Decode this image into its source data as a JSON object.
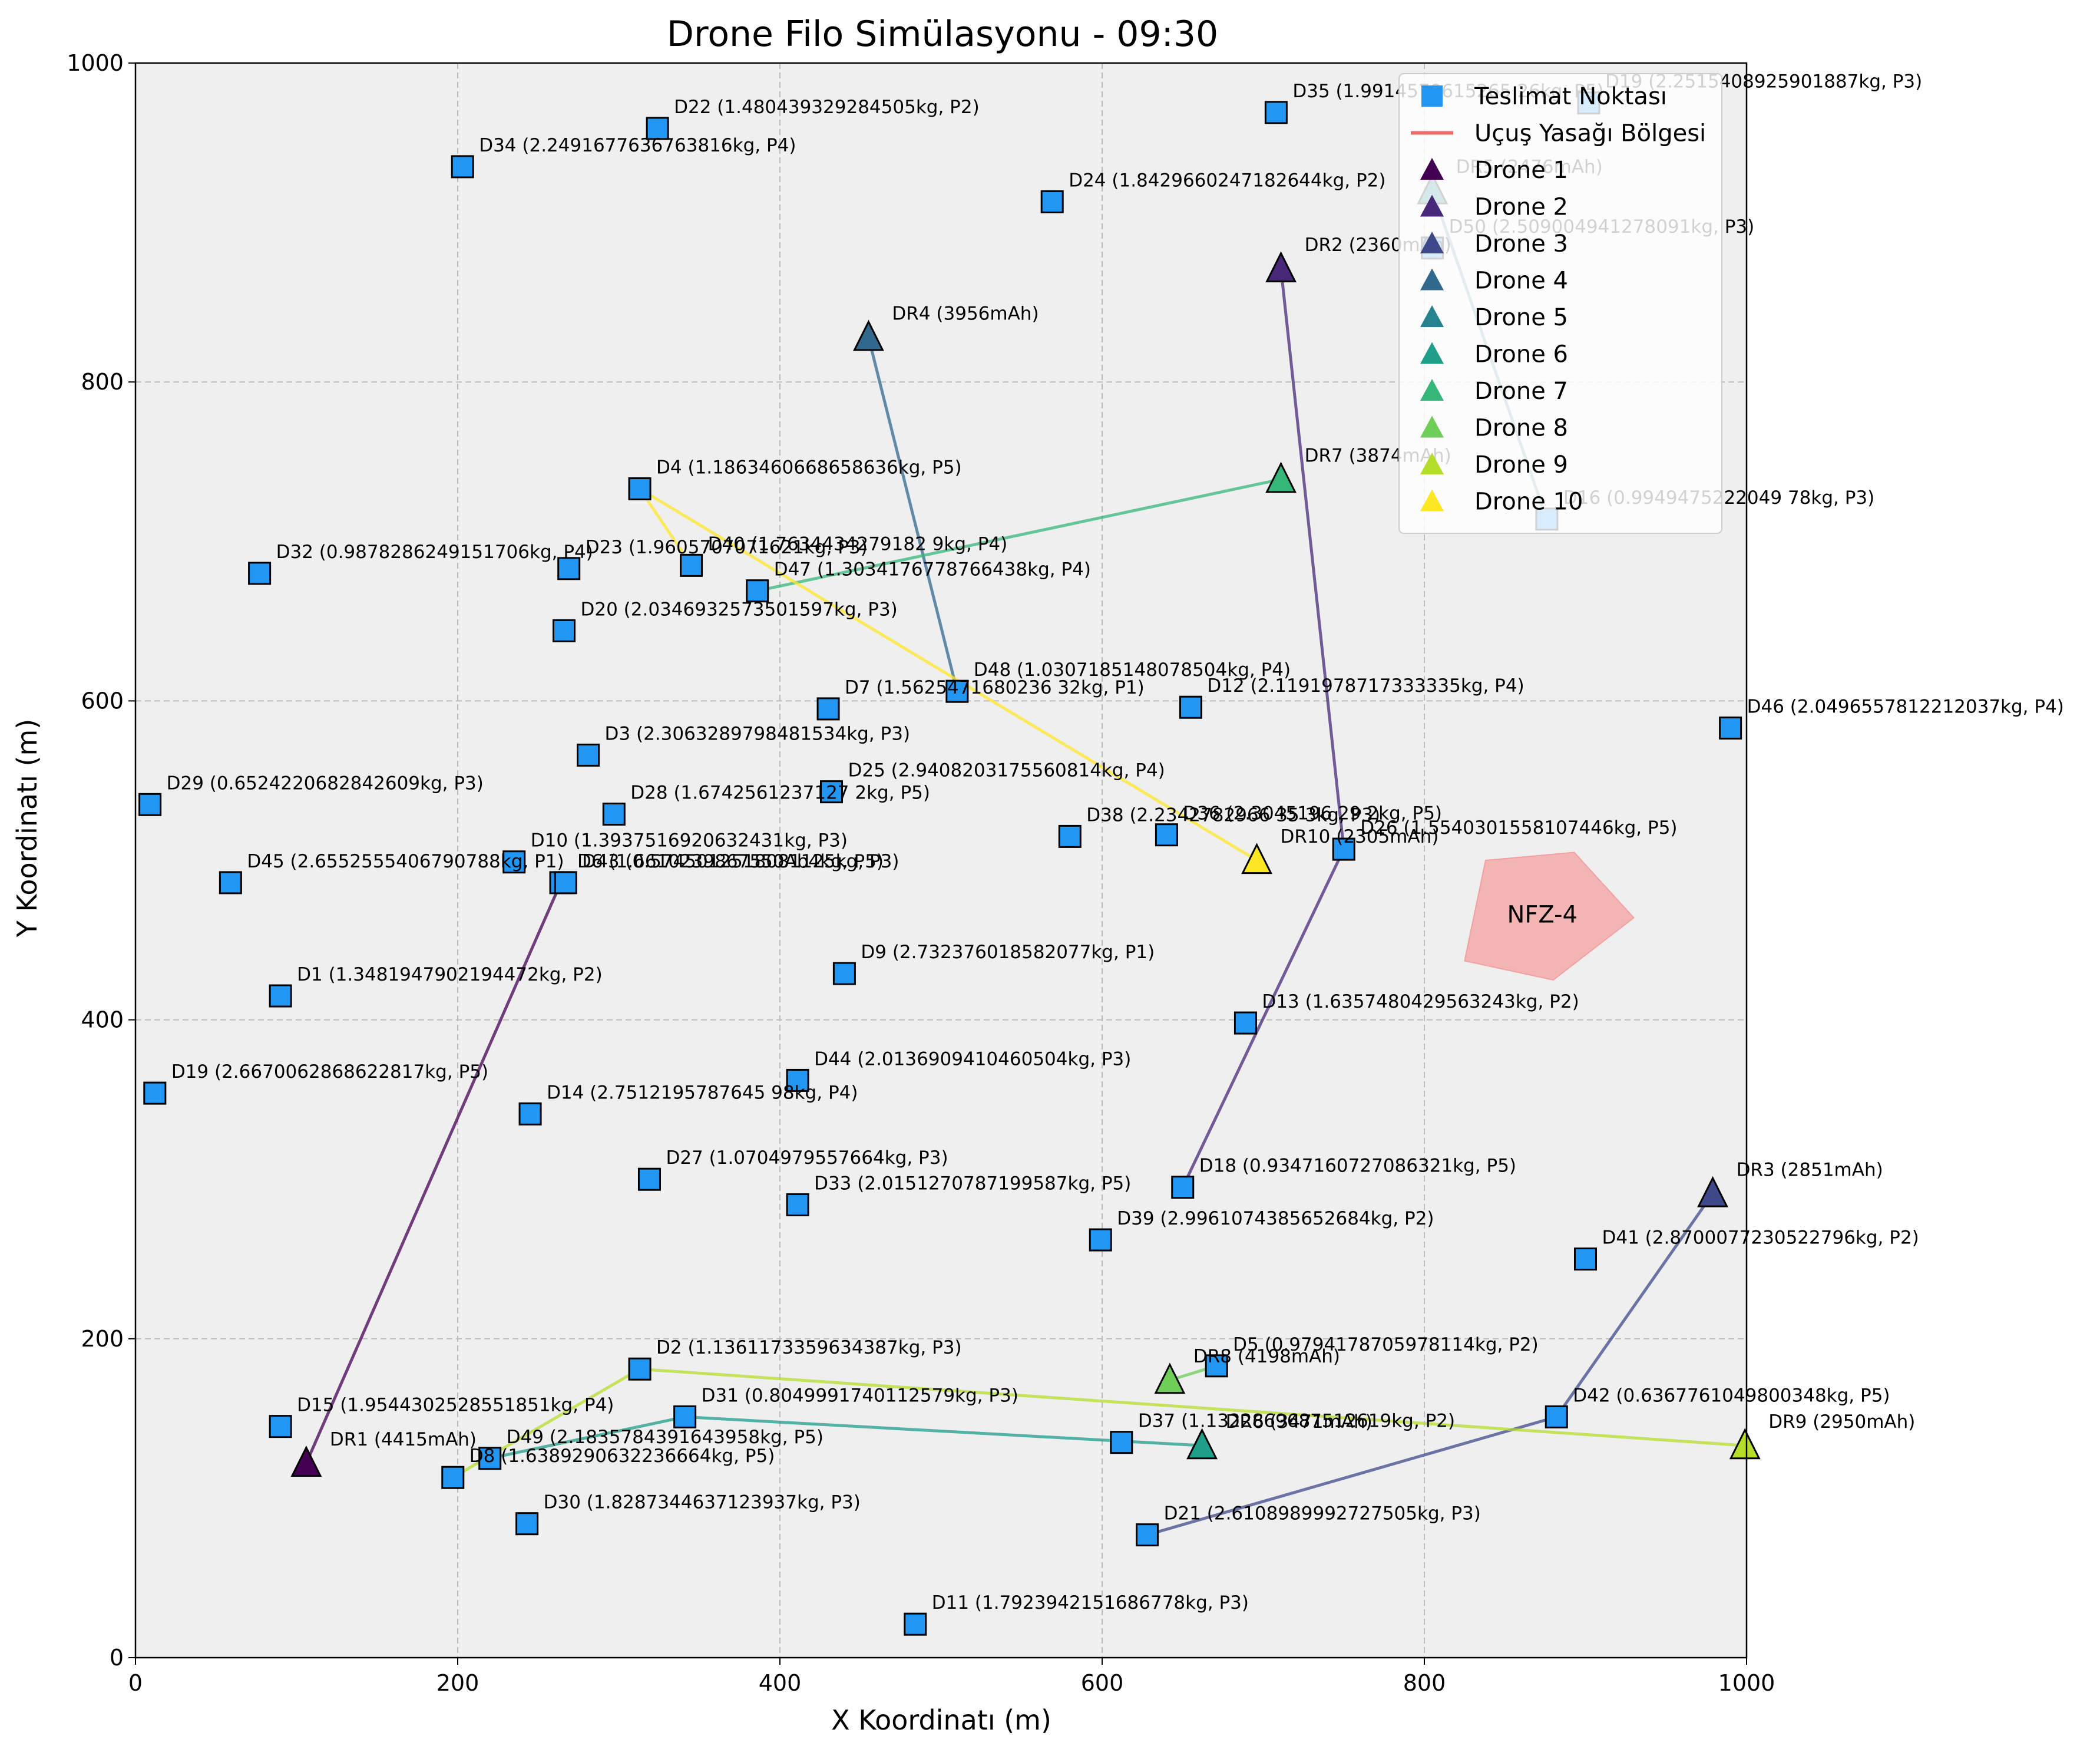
{
  "chart_data": {
    "type": "scatter",
    "title": "Drone Filo Simülasyonu - 09:30",
    "xlabel": "X Koordinatı (m)",
    "ylabel": "Y Koordinatı (m)",
    "xlim": [
      0,
      1000
    ],
    "ylim": [
      0,
      1000
    ],
    "xticks": [
      "0",
      "200",
      "400",
      "600",
      "800",
      "1000"
    ],
    "yticks": [
      "0",
      "200",
      "400",
      "600",
      "800",
      "1000"
    ],
    "grid": true,
    "legend_position": "top-right",
    "legend": [
      {
        "label": "Teslimat Noktası",
        "kind": "square",
        "color": "#2196f3"
      },
      {
        "label": "Uçuş Yasağı Bölgesi",
        "kind": "line",
        "color": "#f06a6a"
      },
      {
        "label": "Drone 1",
        "kind": "triangle",
        "color": "#440154"
      },
      {
        "label": "Drone 2",
        "kind": "triangle",
        "color": "#482878"
      },
      {
        "label": "Drone 3",
        "kind": "triangle",
        "color": "#3e4989"
      },
      {
        "label": "Drone 4",
        "kind": "triangle",
        "color": "#31688e"
      },
      {
        "label": "Drone 5",
        "kind": "triangle",
        "color": "#26828e"
      },
      {
        "label": "Drone 6",
        "kind": "triangle",
        "color": "#1f9e89"
      },
      {
        "label": "Drone 7",
        "kind": "triangle",
        "color": "#35b779"
      },
      {
        "label": "Drone 8",
        "kind": "triangle",
        "color": "#6ece58"
      },
      {
        "label": "Drone 9",
        "kind": "triangle",
        "color": "#b5de2b"
      },
      {
        "label": "Drone 10",
        "kind": "triangle",
        "color": "#fde725"
      }
    ],
    "deliveries": [
      {
        "x": 90,
        "y": 415,
        "label": "D1 (1.3481947902194472kg, P2)"
      },
      {
        "x": 313,
        "y": 181,
        "label": "D2 (1.1361173359634387kg, P3)"
      },
      {
        "x": 281,
        "y": 566,
        "label": "D3 (2.3063289798481534kg, P3)"
      },
      {
        "x": 313,
        "y": 733,
        "label": "D4 (1.1863460668658636kg, P5)"
      },
      {
        "x": 671,
        "y": 183,
        "label": "D5 (0.9794178705978114kg, P2)"
      },
      {
        "x": 264,
        "y": 486,
        "label": "D6 (1.6610239867550Ab4kg, P5)"
      },
      {
        "x": 430,
        "y": 595,
        "label": "D7 (1.5625471680236 32kg, P1)"
      },
      {
        "x": 197,
        "y": 113,
        "label": "D8 (1.6389290632236664kg, P5)"
      },
      {
        "x": 440,
        "y": 429,
        "label": "D9 (2.732376018582077kg, P1)"
      },
      {
        "x": 235,
        "y": 499,
        "label": "D10 (1.3937516920632431kg, P3)"
      },
      {
        "x": 484,
        "y": 21,
        "label": "D11 (1.7923942151686778kg, P3)"
      },
      {
        "x": 655,
        "y": 596,
        "label": "D12 (2.1191978717333335kg, P4)"
      },
      {
        "x": 689,
        "y": 398,
        "label": "D13 (1.6357480429563243kg, P2)"
      },
      {
        "x": 245,
        "y": 341,
        "label": "D14 (2.7512195787645 98kg, P4)"
      },
      {
        "x": 90,
        "y": 145,
        "label": "D15 (1.9544302528551851kg, P4)"
      },
      {
        "x": 876,
        "y": 714,
        "label": "D16 (0.9949475222049 78kg, P3)"
      },
      {
        "x": 12,
        "y": 354,
        "label": "D19 (2.6670062868622817kg, P5)"
      },
      {
        "x": 650,
        "y": 295,
        "label": "D18 (0.9347160727086321kg, P5)"
      },
      {
        "x": 902,
        "y": 975,
        "label": "D19 (2.2515408925901887kg, P3)"
      },
      {
        "x": 266,
        "y": 644,
        "label": "D20 (2.0346932573501597kg, P3)"
      },
      {
        "x": 628,
        "y": 77,
        "label": "D21 (2.6108989992727505kg, P3)"
      },
      {
        "x": 324,
        "y": 959,
        "label": "D22 (1.480439329284505kg, P2)"
      },
      {
        "x": 269,
        "y": 683,
        "label": "D23 (1.9605707071621kg, P3)"
      },
      {
        "x": 569,
        "y": 913,
        "label": "D24 (1.8429660247182644kg, P2)"
      },
      {
        "x": 432,
        "y": 543,
        "label": "D25 (2.9408203175560814kg, P4)"
      },
      {
        "x": 319,
        "y": 300,
        "label": "D27 (1.0704979557664kg, P3)"
      },
      {
        "x": 297,
        "y": 529,
        "label": "D28 (1.6742561237127 2kg, P5)"
      },
      {
        "x": 9,
        "y": 535,
        "label": "D29 (0.6524220682842609kg, P3)"
      },
      {
        "x": 243,
        "y": 84,
        "label": "D30 (1.8287344637123937kg, P3)"
      },
      {
        "x": 341,
        "y": 151,
        "label": "D31 (0.8049991740112579kg, P3)"
      },
      {
        "x": 77,
        "y": 680,
        "label": "D32 (0.9878286249151706kg, P4)"
      },
      {
        "x": 411,
        "y": 284,
        "label": "D33 (2.0151270787199587kg, P5)"
      },
      {
        "x": 203,
        "y": 935,
        "label": "D34 (2.2491677636763816kg, P4)"
      },
      {
        "x": 708,
        "y": 969,
        "label": "D35 (1.9914578615265 26kg, P5)"
      },
      {
        "x": 640,
        "y": 516,
        "label": "D36 (2.3045196 29 2kg, P5)"
      },
      {
        "x": 612,
        "y": 135,
        "label": "D37 (1.1322869687512619kg, P2)"
      },
      {
        "x": 580,
        "y": 515,
        "label": "D38 (2.2342782966 35 3kg, P3)"
      },
      {
        "x": 599,
        "y": 262,
        "label": "D39 (2.9961074385652684kg, P2)"
      },
      {
        "x": 345,
        "y": 685,
        "label": "D40 (1.7634434279182 9kg, P4)"
      },
      {
        "x": 900,
        "y": 250,
        "label": "D41 (2.8700077230522796kg, P2)"
      },
      {
        "x": 882,
        "y": 151,
        "label": "D42 (0.6367761049800348kg, P5)"
      },
      {
        "x": 267,
        "y": 486,
        "label": "D43 (0.5745012518081125kg, P3)"
      },
      {
        "x": 411,
        "y": 362,
        "label": "D44 (2.0136909410460504kg, P3)"
      },
      {
        "x": 59,
        "y": 486,
        "label": "D45 (2.6552555406790788kg, P1)"
      },
      {
        "x": 990,
        "y": 583,
        "label": "D46 (2.0496557812212037kg, P4)"
      },
      {
        "x": 386,
        "y": 669,
        "label": "D47 (1.3034176778766438kg, P4)"
      },
      {
        "x": 510,
        "y": 606,
        "label": "D48 (1.0307185148078504kg, P4)"
      },
      {
        "x": 220,
        "y": 125,
        "label": "D49 (2.1835784391643958kg, P5)"
      },
      {
        "x": 750,
        "y": 507,
        "label": "D26 (1.5540301558107446kg, P5)"
      },
      {
        "x": 805,
        "y": 884,
        "label": "D50 (2.509004941278091kg, P3)"
      }
    ],
    "drones": [
      {
        "name": "Drone 1",
        "x": 106,
        "y": 122,
        "label": "DR1 (4415mAh)",
        "color": "#440154",
        "route": [
          [
            106,
            122
          ],
          [
            264,
            486
          ]
        ]
      },
      {
        "name": "Drone 2",
        "x": 711,
        "y": 871,
        "label": "DR2 (2360mAh)",
        "color": "#482878",
        "route": [
          [
            711,
            871
          ],
          [
            750,
            507
          ],
          [
            650,
            295
          ]
        ]
      },
      {
        "name": "Drone 3",
        "x": 979,
        "y": 291,
        "label": "DR3 (2851mAh)",
        "color": "#3e4989",
        "route": [
          [
            979,
            291
          ],
          [
            882,
            151
          ],
          [
            628,
            77
          ]
        ]
      },
      {
        "name": "Drone 4",
        "x": 455,
        "y": 828,
        "label": "DR4 (3956mAh)",
        "color": "#31688e",
        "route": [
          [
            455,
            828
          ],
          [
            510,
            606
          ]
        ]
      },
      {
        "name": "Drone 5",
        "x": 805,
        "y": 920,
        "label": "DR5 (2476mAh)",
        "color": "#26828e",
        "route": [
          [
            805,
            920
          ],
          [
            876,
            714
          ]
        ]
      },
      {
        "name": "Drone 6",
        "x": 662,
        "y": 133,
        "label": "DR6 (3471mAh)",
        "color": "#1f9e89",
        "route": [
          [
            662,
            133
          ],
          [
            341,
            151
          ],
          [
            220,
            125
          ]
        ]
      },
      {
        "name": "Drone 7",
        "x": 711,
        "y": 739,
        "label": "DR7 (3874mAh)",
        "color": "#35b779",
        "route": [
          [
            711,
            739
          ],
          [
            386,
            669
          ]
        ]
      },
      {
        "name": "Drone 8",
        "x": 642,
        "y": 174,
        "label": "DR8 (4198mAh)",
        "color": "#6ece58",
        "route": [
          [
            642,
            174
          ],
          [
            671,
            183
          ]
        ]
      },
      {
        "name": "Drone 9",
        "x": 999,
        "y": 133,
        "label": "DR9 (2950mAh)",
        "color": "#b5de2b",
        "route": [
          [
            999,
            133
          ],
          [
            313,
            181
          ],
          [
            197,
            113
          ]
        ]
      },
      {
        "name": "Drone 10",
        "x": 696,
        "y": 500,
        "label": "DR10 (2305mAh)",
        "color": "#fde725",
        "route": [
          [
            696,
            500
          ],
          [
            313,
            733
          ],
          [
            345,
            685
          ]
        ]
      }
    ],
    "no_fly_zones": [
      {
        "label": "NFZ-4",
        "polygon": [
          [
            838,
            500
          ],
          [
            893,
            505
          ],
          [
            930,
            464
          ],
          [
            880,
            425
          ],
          [
            825,
            437
          ]
        ]
      }
    ]
  }
}
